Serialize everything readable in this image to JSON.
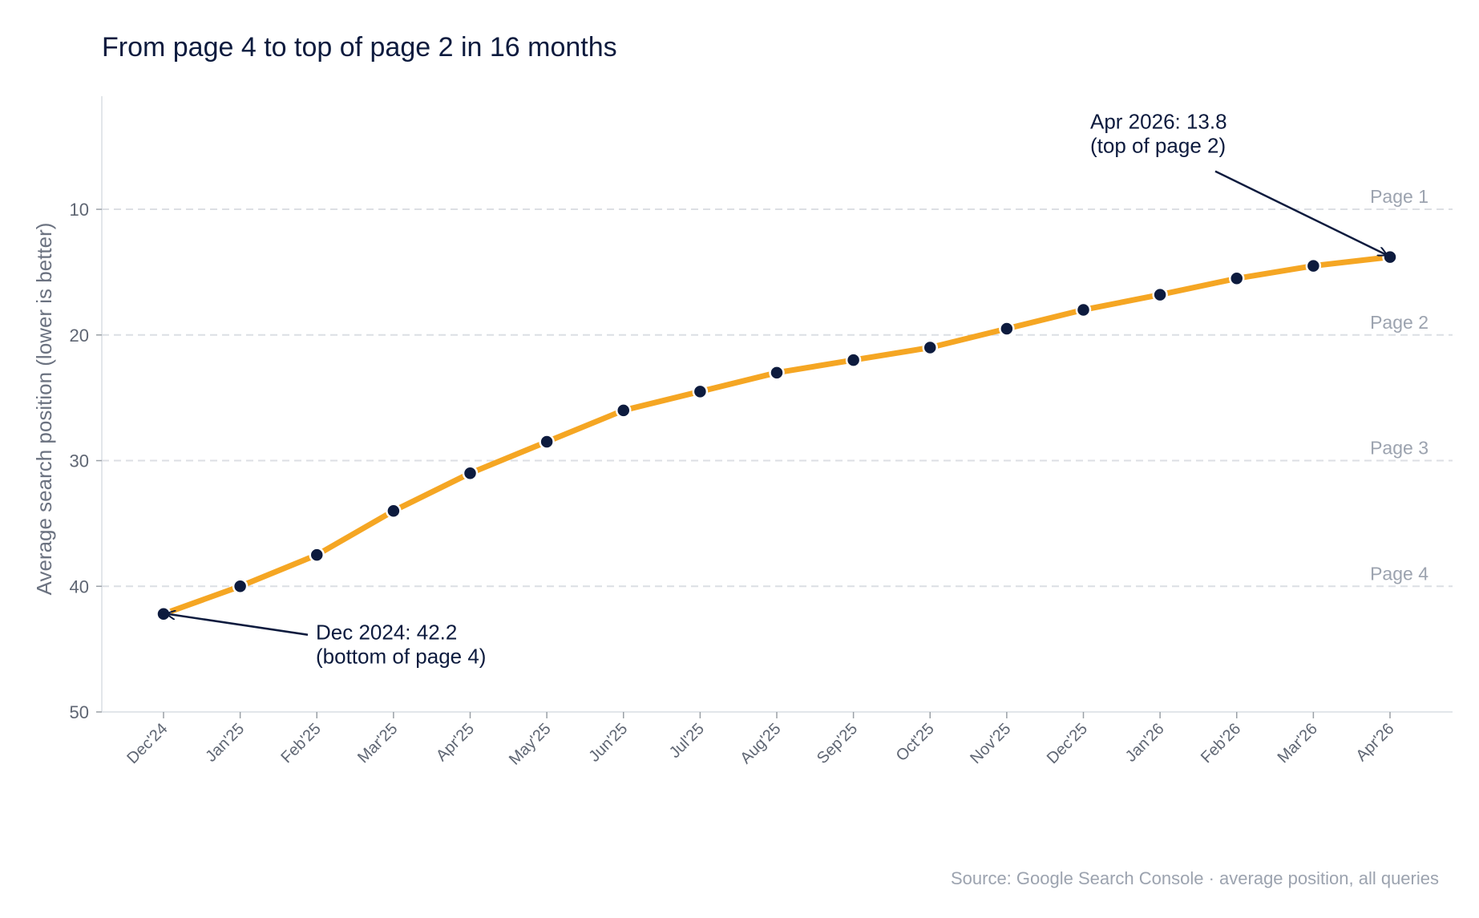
{
  "chart_data": {
    "type": "line",
    "title": "From page 4 to top of page 2 in 16 months",
    "xlabel": "",
    "ylabel": "Average search position (lower is better)",
    "ylim": [
      50,
      1
    ],
    "y_inverted": true,
    "yticks": [
      10,
      20,
      30,
      40,
      50
    ],
    "grid": false,
    "categories": [
      "Dec'24",
      "Jan'25",
      "Feb'25",
      "Mar'25",
      "Apr'25",
      "May'25",
      "Jun'25",
      "Jul'25",
      "Aug'25",
      "Sep'25",
      "Oct'25",
      "Nov'25",
      "Dec'25",
      "Jan'26",
      "Feb'26",
      "Mar'26",
      "Apr'26"
    ],
    "series": [
      {
        "name": "Average position",
        "color": "#f5a623",
        "marker_color": "#0d1b3e",
        "values": [
          42.2,
          40.0,
          37.5,
          34.0,
          31.0,
          28.5,
          26.0,
          24.5,
          23.0,
          22.0,
          21.0,
          19.5,
          18.0,
          16.8,
          15.5,
          14.5,
          13.8
        ]
      }
    ],
    "reference_lines": [
      {
        "value": 10,
        "label": "Page 1"
      },
      {
        "value": 20,
        "label": "Page 2"
      },
      {
        "value": 30,
        "label": "Page 3"
      },
      {
        "value": 40,
        "label": "Page 4"
      }
    ],
    "annotations": [
      {
        "point_index": 0,
        "lines": [
          "Dec 2024: 42.2",
          "(bottom of page 4)"
        ]
      },
      {
        "point_index": 16,
        "lines": [
          "Apr 2026: 13.8",
          "(top of page 2)"
        ]
      }
    ],
    "source": "Source: Google Search Console · average position, all queries"
  }
}
